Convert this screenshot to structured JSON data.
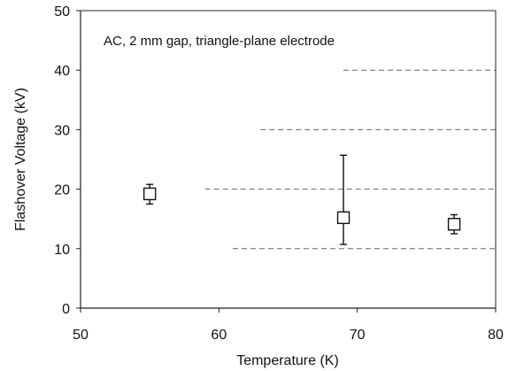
{
  "chart_data": {
    "type": "scatter",
    "xlabel": "Temperature (K)",
    "ylabel": "Flashover Voltage (kV)",
    "xlim": [
      50,
      80
    ],
    "ylim": [
      0,
      50
    ],
    "x_ticks": [
      50,
      60,
      70,
      80
    ],
    "y_ticks": [
      0,
      10,
      20,
      30,
      40,
      50
    ],
    "grid": "horizontal dashed, partial",
    "annotation": "AC, 2 mm gap, triangle-plane electrode",
    "marker": "open-square",
    "points": [
      {
        "x": 55,
        "y": 19.2,
        "y_low": 17.5,
        "y_high": 20.8
      },
      {
        "x": 69,
        "y": 15.2,
        "y_low": 10.7,
        "y_high": 25.7
      },
      {
        "x": 77,
        "y": 14.1,
        "y_low": 12.5,
        "y_high": 15.7
      }
    ]
  }
}
